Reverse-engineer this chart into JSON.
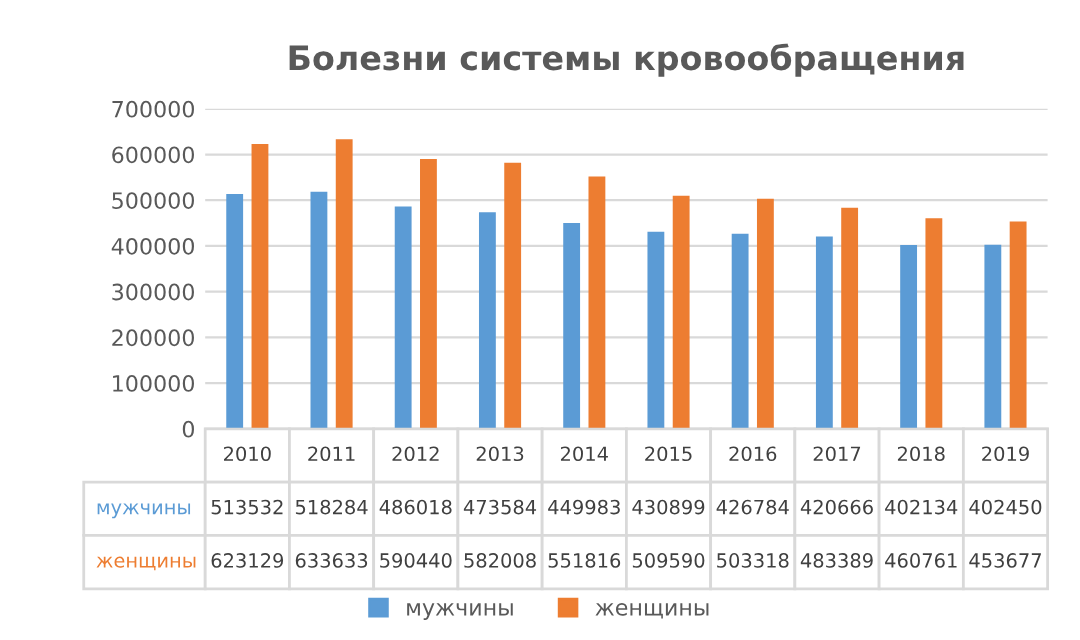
{
  "chart_data": {
    "type": "bar",
    "title": "Болезни системы кровообращения",
    "categories": [
      "2010",
      "2011",
      "2012",
      "2013",
      "2014",
      "2015",
      "2016",
      "2017",
      "2018",
      "2019"
    ],
    "series": [
      {
        "name": "мужчины",
        "color": "#5b9bd5",
        "values": [
          513532,
          518284,
          486018,
          473584,
          449983,
          430899,
          426784,
          420666,
          402134,
          402450
        ]
      },
      {
        "name": "женщины",
        "color": "#ed7d31",
        "values": [
          623129,
          633633,
          590440,
          582008,
          551816,
          509590,
          503318,
          483389,
          460761,
          453677
        ]
      }
    ],
    "ylim": [
      0,
      700000
    ],
    "yticks": [
      0,
      100000,
      200000,
      300000,
      400000,
      500000,
      600000,
      700000
    ],
    "grid": "y",
    "legend": "bottom",
    "data_labels": true
  }
}
